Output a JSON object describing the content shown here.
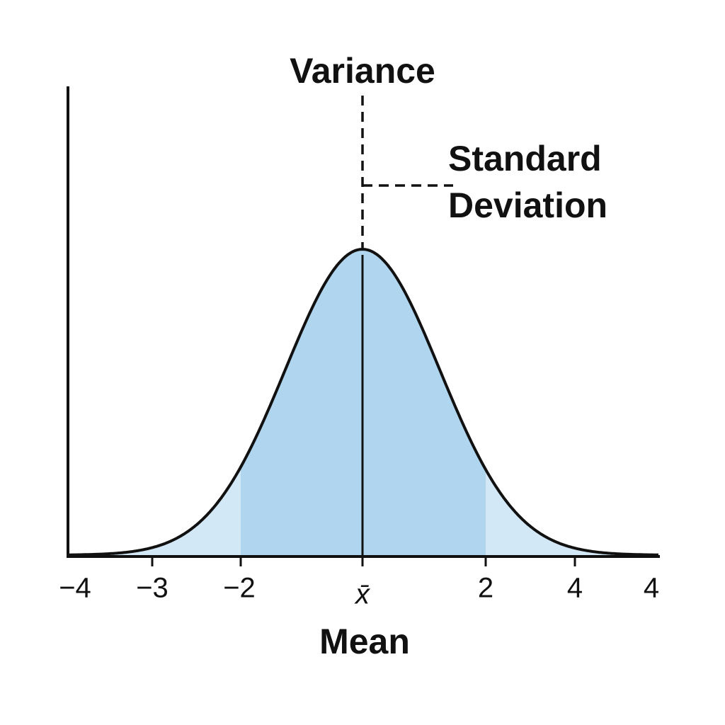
{
  "title": "Variance",
  "annotation": {
    "lines": [
      "Standard",
      "Deviation"
    ]
  },
  "x_axis": {
    "tick_labels": [
      "−4",
      "−3",
      "−2",
      "x̄",
      "2",
      "4",
      "4"
    ],
    "label": "Mean"
  }
}
